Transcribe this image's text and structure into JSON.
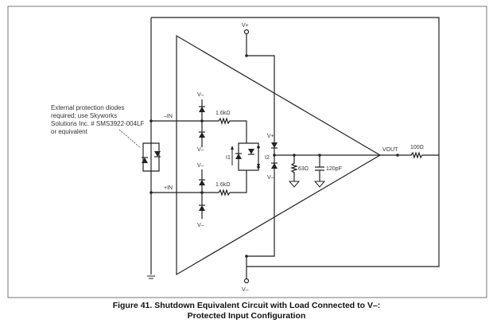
{
  "labels": {
    "vplus": "V+",
    "vminus": "V–",
    "in_minus": "–IN",
    "in_plus": "+IN",
    "r_in_minus": "1.6kΩ",
    "r_in_plus": "1.6kΩ",
    "i1": "I1",
    "i2": "I2",
    "r_load": "63Ω",
    "c_load": "120pF",
    "vout": "VOUT",
    "r_out": "100Ω",
    "note": [
      "External protection diodes",
      "required; use Skyworks",
      "Solutions Inc. # SMS3922-004LF",
      "or equivalent"
    ]
  },
  "caption": {
    "line1": "Figure 41.  Shutdown Equivalent Circuit with Load Connected to V–:",
    "line2": "Protected Input Configuration"
  }
}
